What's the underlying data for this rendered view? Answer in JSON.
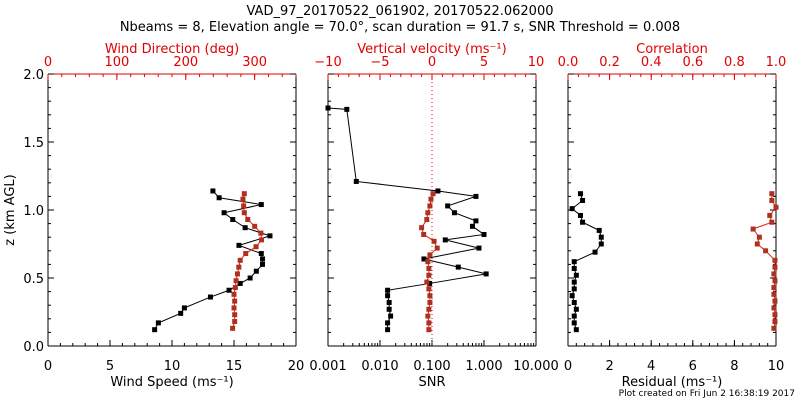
{
  "title_line1": "VAD_97_20170522_061902, 20170522.062000",
  "title_line2": "Nbeams = 8, Elevation angle = 70.0°, scan duration = 91.7 s, SNR Threshold = 0.008",
  "footer": "Plot created on Fri Jun  2 16:38:19 2017",
  "colors": {
    "black_series": "#000000",
    "red_series": "#b03020",
    "red_axis": "#e00000"
  },
  "chart_data": [
    {
      "type": "line",
      "panel": "wind",
      "ylabel": "z (km AGL)",
      "ylim": [
        0,
        2
      ],
      "yticks": [
        "0.0",
        "0.5",
        "1.0",
        "1.5",
        "2.0"
      ],
      "xlabel_bottom": "Wind Speed (ms⁻¹)",
      "xlim_bottom": [
        0,
        20
      ],
      "xticks_bottom": [
        "0",
        "5",
        "10",
        "15",
        "20"
      ],
      "xlabel_top": "Wind Direction (deg)",
      "xlim_top": [
        0,
        360
      ],
      "xticks_top": [
        "0",
        "100",
        "200",
        "300"
      ],
      "series": [
        {
          "name": "Wind Speed",
          "axis": "bottom",
          "color": "#000000",
          "z": [
            0.12,
            0.17,
            0.24,
            0.28,
            0.36,
            0.41,
            0.46,
            0.5,
            0.55,
            0.6,
            0.64,
            0.68,
            0.74,
            0.81,
            0.87,
            0.93,
            0.98,
            1.04,
            1.09,
            1.14
          ],
          "values": [
            8.6,
            8.9,
            10.7,
            11.0,
            13.1,
            14.6,
            15.5,
            16.3,
            16.8,
            17.3,
            17.3,
            17.2,
            15.4,
            17.9,
            15.9,
            14.9,
            14.2,
            17.2,
            13.8,
            13.3
          ]
        },
        {
          "name": "Wind Direction",
          "axis": "top",
          "color": "#b03020",
          "z": [
            0.13,
            0.18,
            0.23,
            0.28,
            0.33,
            0.38,
            0.43,
            0.48,
            0.53,
            0.58,
            0.63,
            0.68,
            0.73,
            0.78,
            0.83,
            0.88,
            0.93,
            0.98,
            1.03,
            1.08,
            1.12
          ],
          "values": [
            268,
            271,
            271,
            270,
            271,
            270,
            272,
            273,
            275,
            277,
            279,
            287,
            302,
            310,
            309,
            300,
            290,
            285,
            284,
            283,
            285
          ]
        }
      ]
    },
    {
      "type": "line",
      "panel": "snr",
      "xlabel_bottom": "SNR",
      "xscale_bottom": "log",
      "xlim_bottom": [
        0.001,
        10
      ],
      "xticks_bottom": [
        "0.001",
        "0.010",
        "0.100",
        "1.000",
        "10.000"
      ],
      "xlabel_top": "Vertical velocity (ms⁻¹)",
      "xlim_top": [
        -10,
        10
      ],
      "xticks_top": [
        "−10",
        "−5",
        "0",
        "5",
        "10"
      ],
      "zero_line": 0,
      "series": [
        {
          "name": "SNR",
          "axis": "bottom",
          "color": "#000000",
          "z": [
            0.12,
            0.17,
            0.22,
            0.27,
            0.32,
            0.37,
            0.41,
            0.46,
            0.53,
            0.58,
            0.64,
            0.72,
            0.78,
            0.82,
            0.88,
            0.92,
            0.98,
            1.03,
            1.1,
            1.14,
            1.21,
            1.74,
            1.75
          ],
          "values": [
            0.014,
            0.014,
            0.016,
            0.015,
            0.015,
            0.014,
            0.014,
            0.09,
            1.1,
            0.32,
            0.07,
            0.8,
            0.18,
            1.0,
            0.6,
            0.7,
            0.27,
            0.2,
            0.7,
            0.13,
            0.0035,
            0.0023,
            0.001
          ]
        },
        {
          "name": "Vertical velocity",
          "axis": "top",
          "color": "#b03020",
          "z": [
            0.12,
            0.17,
            0.22,
            0.27,
            0.32,
            0.37,
            0.42,
            0.47,
            0.52,
            0.57,
            0.62,
            0.67,
            0.72,
            0.77,
            0.82,
            0.87,
            0.93,
            0.98,
            1.03,
            1.08,
            1.12
          ],
          "values": [
            -0.3,
            -0.3,
            -0.4,
            -0.3,
            -0.2,
            -0.2,
            -0.3,
            -0.5,
            -0.3,
            -0.3,
            -0.4,
            -0.2,
            0.5,
            0.2,
            -0.8,
            -1.0,
            -0.5,
            -0.4,
            -0.2,
            -0.1,
            0.1
          ]
        }
      ]
    },
    {
      "type": "line",
      "panel": "residual",
      "xlabel_bottom": "Residual (ms⁻¹)",
      "xlim_bottom": [
        0,
        10
      ],
      "xticks_bottom": [
        "0",
        "2",
        "4",
        "6",
        "8",
        "10"
      ],
      "xlabel_top": "Correlation",
      "xlim_top": [
        0,
        1
      ],
      "xticks_top": [
        "0.0",
        "0.2",
        "0.4",
        "0.6",
        "0.8",
        "1.0"
      ],
      "series": [
        {
          "name": "Residual",
          "axis": "bottom",
          "color": "#000000",
          "z": [
            0.12,
            0.17,
            0.22,
            0.27,
            0.32,
            0.37,
            0.42,
            0.47,
            0.52,
            0.57,
            0.62,
            0.69,
            0.75,
            0.8,
            0.85,
            0.91,
            0.96,
            1.01,
            1.07,
            1.12
          ],
          "values": [
            0.4,
            0.3,
            0.3,
            0.4,
            0.3,
            0.2,
            0.3,
            0.3,
            0.4,
            0.3,
            0.3,
            1.3,
            1.6,
            1.6,
            1.5,
            0.7,
            0.6,
            0.2,
            0.7,
            0.6
          ]
        },
        {
          "name": "Correlation",
          "axis": "top",
          "color": "#b03020",
          "z": [
            0.13,
            0.18,
            0.23,
            0.28,
            0.33,
            0.38,
            0.43,
            0.48,
            0.53,
            0.58,
            0.63,
            0.7,
            0.75,
            0.8,
            0.86,
            0.91,
            0.96,
            1.02,
            1.07,
            1.12
          ],
          "values": [
            0.99,
            0.995,
            0.995,
            0.99,
            0.995,
            0.99,
            0.99,
            0.995,
            0.99,
            0.995,
            0.995,
            0.95,
            0.91,
            0.92,
            0.89,
            0.98,
            0.97,
            1.0,
            0.98,
            0.98
          ]
        }
      ]
    }
  ]
}
